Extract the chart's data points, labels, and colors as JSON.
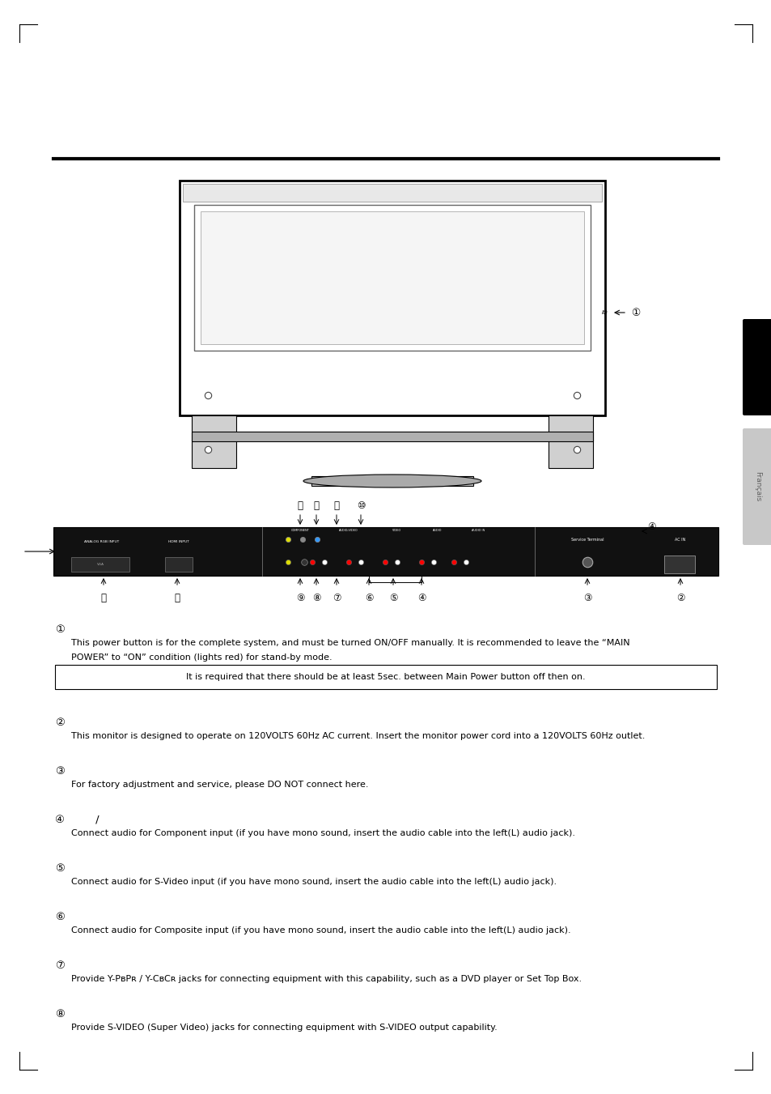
{
  "bg_color": "#ffffff",
  "page_width": 9.54,
  "page_height": 13.51,
  "sidebar_label": "Français",
  "section1_text1": "This power button is for the complete system, and must be turned ON/OFF manually. It is recommended to leave the “MAIN",
  "section1_text2": "POWER” to “ON” condition (lights red) for stand-by mode.",
  "section1_box": "It is required that there should be at least 5sec. between Main Power button off then on.",
  "section2_text": "This monitor is designed to operate on 120VOLTS 60Hz AC current. Insert the monitor power cord into a 120VOLTS 60Hz outlet.",
  "section3_text": "For factory adjustment and service, please DO NOT connect here.",
  "section4_text": "Connect audio for Component input (if you have mono sound, insert the audio cable into the left(L) audio jack).",
  "section5_text": "Connect audio for S-Video input (if you have mono sound, insert the audio cable into the left(L) audio jack).",
  "section6_text": "Connect audio for Composite input (if you have mono sound, insert the audio cable into the left(L) audio jack).",
  "section7_text": "Provide Y-PʙPʀ / Y-CʙCʀ jacks for connecting equipment with this capability, such as a DVD player or Set Top Box.",
  "section8_text": "Provide S-VIDEO (Super Video) jacks for connecting equipment with S-VIDEO output capability."
}
